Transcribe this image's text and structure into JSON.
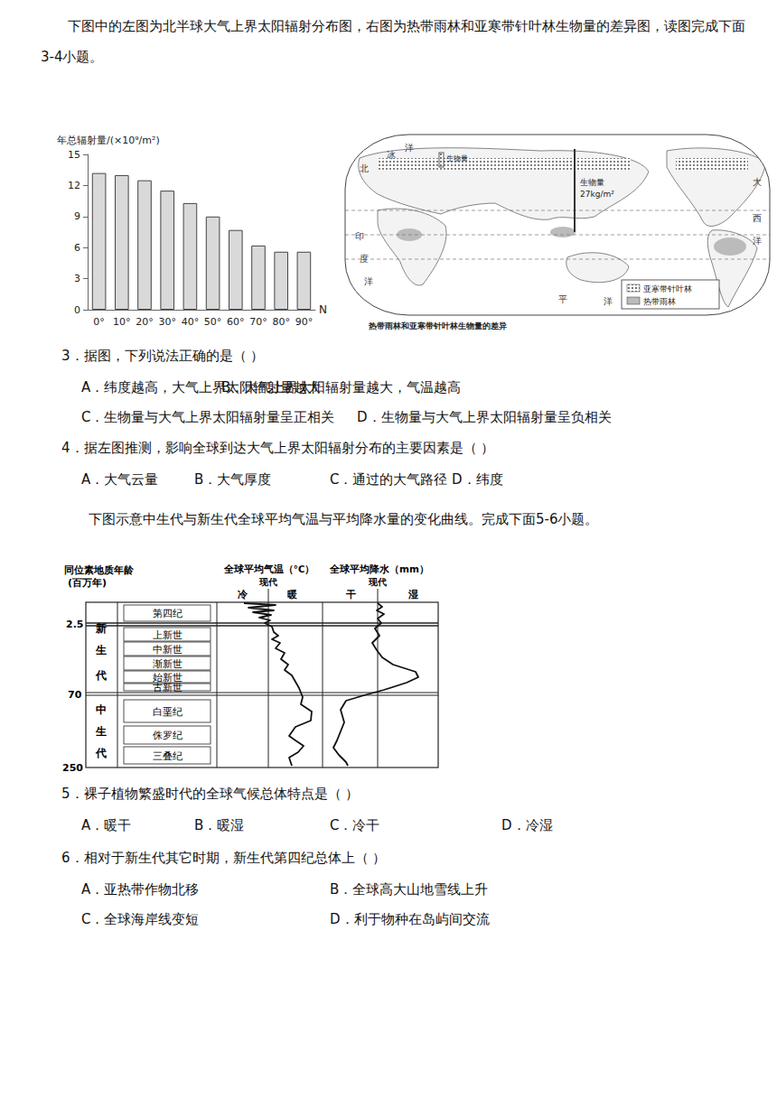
{
  "intro1": "下图中的左图为北半球大气上界太阳辐射分布图，右图为热带雨林和亚寒带针叶林生物量的差异图，读图完成下面3-4小题。",
  "chart_data": {
    "type": "bar",
    "ylabel": "年总辐射量/(×10⁹/m²)",
    "xlabel": "N",
    "categories": [
      "0°",
      "10°",
      "20°",
      "30°",
      "40°",
      "50°",
      "60°",
      "70°",
      "80°",
      "90°"
    ],
    "values": [
      13.2,
      13.0,
      12.5,
      11.5,
      10.3,
      9.0,
      7.7,
      6.2,
      5.6,
      5.6
    ],
    "color": "#d9d9d9",
    "ylim": [
      0,
      15
    ],
    "yticks": [
      0,
      3,
      6,
      9,
      12,
      15
    ],
    "grid": false,
    "data_labels": false
  },
  "map": {
    "ocean_labels": [
      "北",
      "冰",
      "洋",
      "大",
      "西",
      "洋",
      "平",
      "洋",
      "印",
      "度",
      "洋"
    ],
    "taiga_biomass_label": "生物量",
    "rainforest_biomass_label": [
      "生物量",
      "27kg/m²"
    ],
    "legend": [
      "亚寒带针叶林",
      "热带雨林"
    ],
    "caption": "热带雨林和亚寒带针叶林生物量的差异"
  },
  "questions_a": [
    {
      "stem": "3．据图，下列说法正确的是（  ）",
      "options": [
        "A．纬度越高，大气上界太阳辐射量越大",
        "B．大气上界太阳辐射量越大，气温越高",
        "C．生物量与大气上界太阳辐射量呈正相关",
        "D．生物量与大气上界太阳辐射量呈负相关"
      ]
    },
    {
      "stem": "4．据左图推测，影响全球到达大气上界太阳辐射分布的主要因素是（  ）",
      "options": [
        "A．大气云量",
        "B．大气厚度",
        "C．通过的大气路径",
        "D．纬度"
      ]
    }
  ],
  "intro2": "下图示意中生代与新生代全球平均气温与平均降水量的变化曲线。完成下面5-6小题。",
  "geo_chart": {
    "age_title": [
      "同位素地质年龄",
      "(百万年)"
    ],
    "ages": [
      "2.5",
      "70",
      "250"
    ],
    "eras": [
      [
        "新",
        "生",
        "代"
      ],
      [
        "中",
        "生",
        "代"
      ]
    ],
    "periods": [
      "第四纪",
      "上新世",
      "中新世",
      "渐新世",
      "始新世",
      "古新世",
      "白垩纪",
      "侏罗纪",
      "三叠纪"
    ],
    "temperature": {
      "title": "全球平均气温（℃）",
      "modern": "现代",
      "left": "冷",
      "right": "暖"
    },
    "precipitation": {
      "title": "全球平均降水（mm）",
      "modern": "现代",
      "left": "干",
      "right": "湿"
    }
  },
  "questions_b": [
    {
      "stem": "5．裸子植物繁盛时代的全球气候总体特点是（  ）",
      "options": [
        "A．暖干",
        "B．暖湿",
        "C．冷干",
        "D．冷湿"
      ]
    },
    {
      "stem": "6．相对于新生代其它时期，新生代第四纪总体上（  ）",
      "options": [
        "A．亚热带作物北移",
        "B．全球高大山地雪线上升",
        "C．全球海岸线变短",
        "D．利于物种在岛屿间交流"
      ]
    }
  ]
}
